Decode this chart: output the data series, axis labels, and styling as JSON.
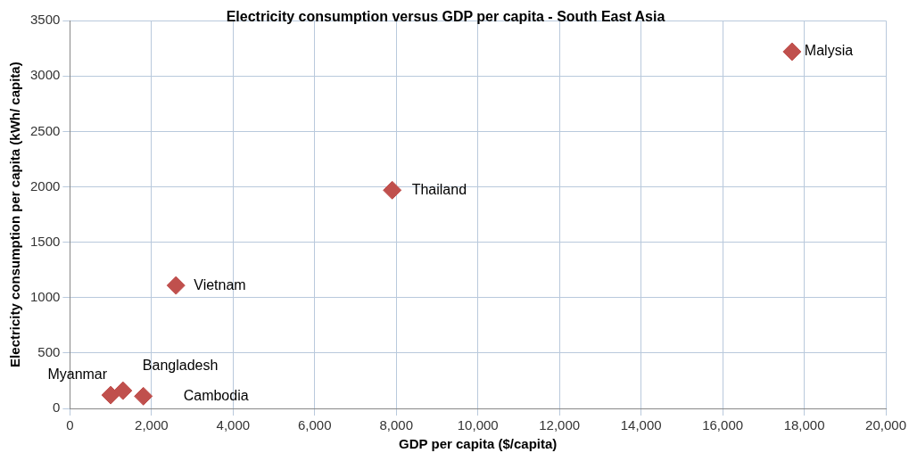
{
  "chart_data": {
    "type": "scatter",
    "title": "Electricity consumption versus GDP per capita - South East Asia",
    "xlabel": "GDP per capita ($/capita)",
    "ylabel": "Electricity consumption per capita (kWh/ capita)",
    "x": [
      17700,
      7900,
      2600,
      1000,
      1300,
      1800
    ],
    "series": [
      {
        "color": "#c0504d",
        "values": [
          3220,
          1970,
          1110,
          120,
          160,
          110
        ]
      }
    ],
    "annotations": [
      {
        "text": "Malysia",
        "x": 17700,
        "y": 3220
      },
      {
        "text": "Thailand",
        "x": 7900,
        "y": 1970
      },
      {
        "text": "Vietnam",
        "x": 2600,
        "y": 1110
      },
      {
        "text": "Myanmar",
        "x": 1000,
        "y": 120
      },
      {
        "text": "Bangladesh",
        "x": 1300,
        "y": 160
      },
      {
        "text": "Cambodia",
        "x": 1800,
        "y": 110
      }
    ],
    "xlim": [
      0,
      20000
    ],
    "xticks": [
      {
        "value": 0,
        "label": "0"
      },
      {
        "value": 2000,
        "label": "2,000"
      },
      {
        "value": 4000,
        "label": "4,000"
      },
      {
        "value": 6000,
        "label": "6,000"
      },
      {
        "value": 8000,
        "label": "8,000"
      },
      {
        "value": 10000,
        "label": "10,000"
      },
      {
        "value": 12000,
        "label": "12,000"
      },
      {
        "value": 14000,
        "label": "14,000"
      },
      {
        "value": 16000,
        "label": "16,000"
      },
      {
        "value": 18000,
        "label": "18,000"
      },
      {
        "value": 20000,
        "label": "20,000"
      }
    ],
    "ylim": [
      0,
      3500
    ],
    "yticks": [
      0,
      500,
      1000,
      1500,
      2000,
      2500,
      3000,
      3500
    ],
    "grid": true,
    "legend": false,
    "marker": "diamond"
  }
}
